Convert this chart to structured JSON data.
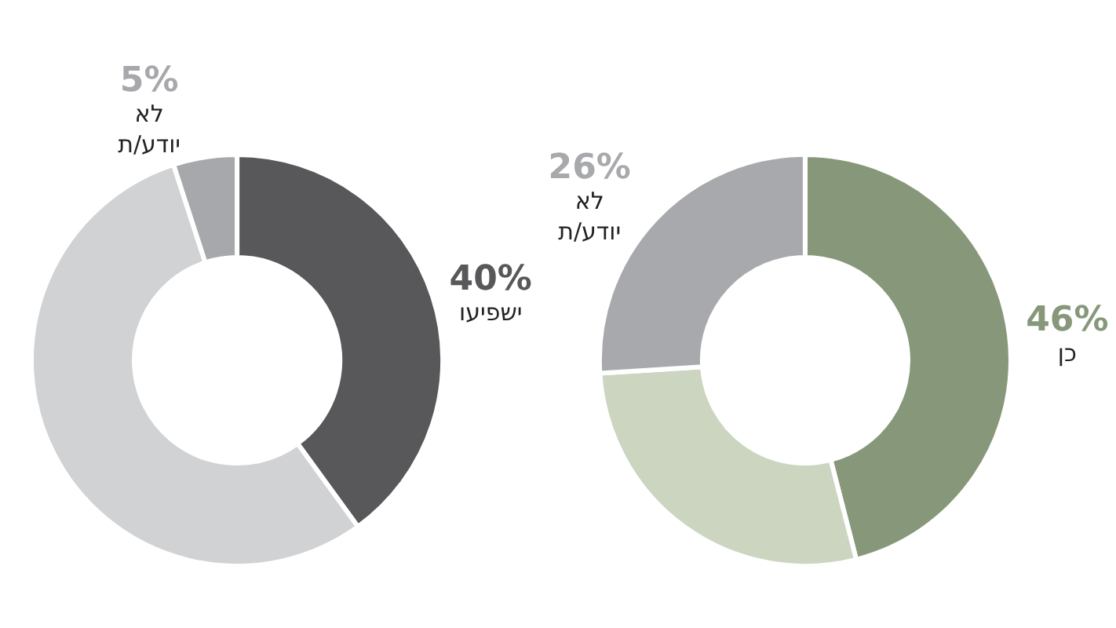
{
  "chart_data": [
    {
      "type": "donut",
      "categories": [
        "ישפיעו",
        null,
        "לא יודע/ת"
      ],
      "values": [
        40,
        55,
        5
      ],
      "colors": [
        "#58585a",
        "#d1d2d4",
        "#a7a8ab"
      ],
      "value_labels": [
        "40%",
        null,
        "5%"
      ],
      "legend": false
    },
    {
      "type": "donut",
      "categories": [
        "כן",
        null,
        "לא יודע/ת"
      ],
      "values": [
        46,
        28,
        26
      ],
      "colors": [
        "#87987a",
        "#cbd5c0",
        "#a8a9ac"
      ],
      "value_labels": [
        "46%",
        null,
        "26%"
      ],
      "legend": false
    }
  ]
}
